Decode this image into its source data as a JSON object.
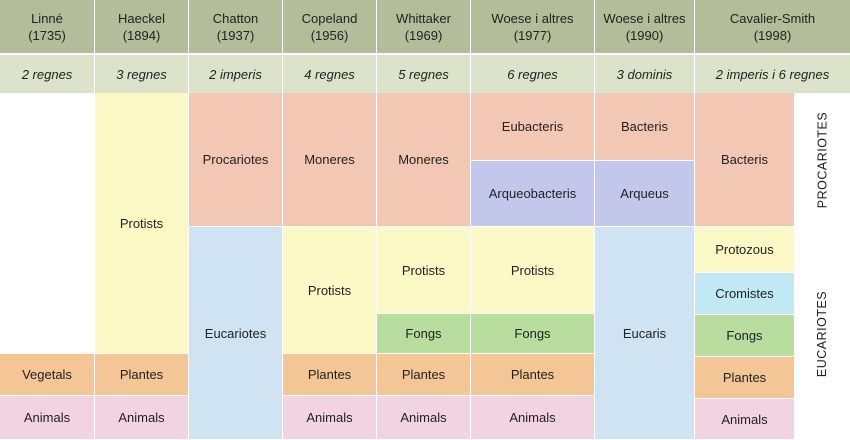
{
  "headers": [
    {
      "name": "Linné",
      "year": "(1735)"
    },
    {
      "name": "Haeckel",
      "year": "(1894)"
    },
    {
      "name": "Chatton",
      "year": "(1937)"
    },
    {
      "name": "Copeland",
      "year": "(1956)"
    },
    {
      "name": "Whittaker",
      "year": "(1969)"
    },
    {
      "name": "Woese i altres",
      "year": "(1977)"
    },
    {
      "name": "Woese i altres",
      "year": "(1990)"
    },
    {
      "name": "Cavalier-Smith",
      "year": "(1998)"
    }
  ],
  "subtitles": [
    "2 regnes",
    "3 regnes",
    "2 imperis",
    "4 regnes",
    "5 regnes",
    "6 regnes",
    "3 dominis",
    "2 imperis i 6 regnes"
  ],
  "side_labels": {
    "top": "PROCARIOTES",
    "bottom": "EUCARIOTES"
  },
  "cells": {
    "vegetals": "Vegetals",
    "animals": "Animals",
    "protists": "Protists",
    "plantes": "Plantes",
    "procariotes": "Procariotes",
    "eucariotes": "Eucariotes",
    "moneres": "Moneres",
    "eubacteris": "Eubacteris",
    "arqueobacteris": "Arqueobacteris",
    "fongs": "Fongs",
    "bacteris": "Bacteris",
    "arqueus": "Arqueus",
    "eucaris": "Eucaris",
    "protozous": "Protozous",
    "cromistes": "Cromistes"
  },
  "colors": {
    "header_bg": "#b5bc9a",
    "subtitle_bg": "#dde2cb",
    "yellow": "#fdf9c6",
    "orange": "#f4c595",
    "pink": "#f2d3e0",
    "salmon": "#f2c7b3",
    "blue": "#cfe3f2",
    "lavender": "#c3c7ec",
    "green": "#b8dd9f",
    "cyan": "#c1e9f3"
  }
}
